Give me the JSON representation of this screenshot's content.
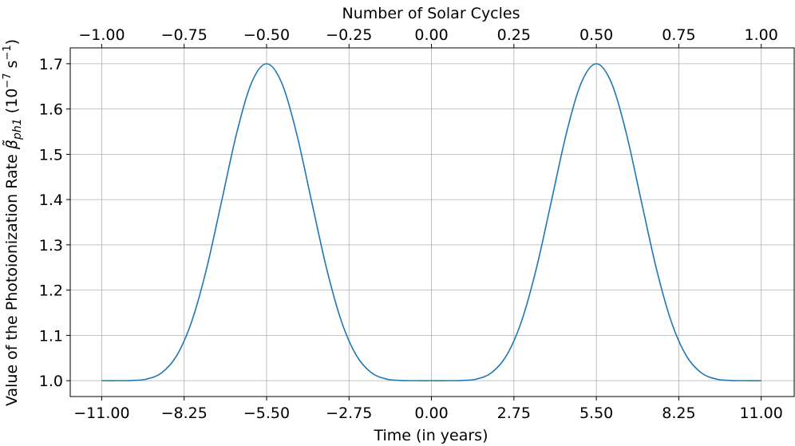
{
  "chart_data": {
    "type": "line",
    "xlabel": "Time (in years)",
    "ylabel": "Value of the Photoionization Rate",
    "ylabel_symbol": "β̃",
    "ylabel_subscript": "ph1",
    "ylabel_unit_prefix": "(10",
    "ylabel_unit_exp1": "−7",
    "ylabel_unit_mid": " s",
    "ylabel_unit_exp2": "−1",
    "ylabel_unit_suffix": ")",
    "top_xlabel": "Number of Solar Cycles",
    "xlim": [
      -12.05,
      12.1
    ],
    "ylim": [
      0.965,
      1.735
    ],
    "grid": true,
    "color": "#1f77b4",
    "xticks": [
      "−11.00",
      "−8.25",
      "−5.50",
      "−2.75",
      "0.00",
      "2.75",
      "5.50",
      "8.25",
      "11.00"
    ],
    "xtick_values": [
      -11,
      -8.25,
      -5.5,
      -2.75,
      0,
      2.75,
      5.5,
      8.25,
      11
    ],
    "top_xticks": [
      "−1.00",
      "−0.75",
      "−0.50",
      "−0.25",
      "0.00",
      "0.25",
      "0.50",
      "0.75",
      "1.00"
    ],
    "top_xtick_values": [
      -1,
      -0.75,
      -0.5,
      -0.25,
      0,
      0.25,
      0.5,
      0.75,
      1
    ],
    "yticks": [
      "1.0",
      "1.1",
      "1.2",
      "1.3",
      "1.4",
      "1.5",
      "1.6",
      "1.7"
    ],
    "ytick_values": [
      1.0,
      1.1,
      1.2,
      1.3,
      1.4,
      1.5,
      1.6,
      1.7
    ],
    "x": [
      -11,
      -10.5,
      -10,
      -9.5,
      -9,
      -8.5,
      -8,
      -7.5,
      -7,
      -6.5,
      -6,
      -5.5,
      -5,
      -4.5,
      -4,
      -3.5,
      -3,
      -2.5,
      -2,
      -1.5,
      -1,
      -0.5,
      0,
      0.5,
      1,
      1.5,
      2,
      2.5,
      3,
      3.5,
      4,
      4.5,
      5,
      5.5,
      6,
      6.5,
      7,
      7.5,
      8,
      8.5,
      9,
      9.5,
      10,
      10.5,
      11
    ],
    "y": [
      1.0,
      1.0,
      1.0004,
      1.0036,
      1.0175,
      1.0552,
      1.1304,
      1.2481,
      1.3965,
      1.5462,
      1.6583,
      1.7,
      1.6583,
      1.5462,
      1.3965,
      1.2481,
      1.1304,
      1.0552,
      1.0175,
      1.0036,
      1.0004,
      1.0,
      1.0,
      1.0,
      1.0004,
      1.0036,
      1.0175,
      1.0552,
      1.1304,
      1.2481,
      1.3965,
      1.5462,
      1.6583,
      1.7,
      1.6583,
      1.5462,
      1.3965,
      1.2481,
      1.1304,
      1.0552,
      1.0175,
      1.0036,
      1.0004,
      1.0,
      1.0
    ]
  }
}
